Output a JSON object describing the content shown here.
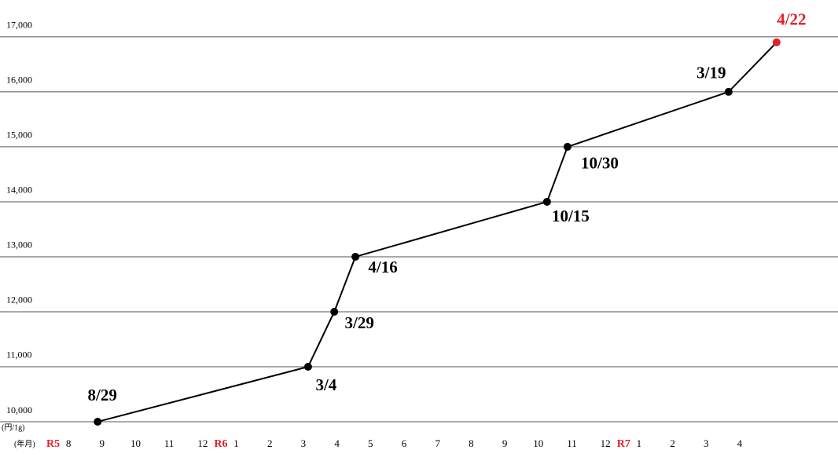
{
  "chart_data": {
    "type": "line",
    "y_unit": "(円/1g)",
    "x_unit": "(年月)",
    "categories": [
      "8",
      "9",
      "10",
      "11",
      "12",
      "1",
      "2",
      "3",
      "4",
      "5",
      "6",
      "7",
      "8",
      "9",
      "10",
      "11",
      "12",
      "1",
      "2",
      "3",
      "4"
    ],
    "years": [
      "R5",
      null,
      null,
      null,
      null,
      "R6",
      null,
      null,
      null,
      null,
      null,
      null,
      null,
      null,
      null,
      null,
      null,
      "R7",
      null,
      null,
      null
    ],
    "xlim": [
      -2.04,
      22.93
    ],
    "ylim": [
      10000,
      17670
    ],
    "yticks": [
      {
        "value": 10000,
        "label": "10,000"
      },
      {
        "value": 11000,
        "label": "11,000"
      },
      {
        "value": 12000,
        "label": "12,000"
      },
      {
        "value": 13000,
        "label": "13,000"
      },
      {
        "value": 14000,
        "label": "14,000"
      },
      {
        "value": 15000,
        "label": "15,000"
      },
      {
        "value": 16000,
        "label": "16,000"
      },
      {
        "value": 17000,
        "label": "17,000"
      }
    ],
    "grid": true,
    "series": [
      {
        "color": "#000000",
        "x": [
          0.87,
          7.14,
          7.92,
          8.55,
          14.26,
          14.87,
          19.67,
          21.1
        ],
        "values": [
          10000,
          11000,
          12000,
          13000,
          14000,
          15000,
          16000,
          16900
        ],
        "point_labels": [
          "8/29",
          "3/4",
          "3/29",
          "4/16",
          "10/15",
          "10/30",
          "3/19",
          "4/22"
        ],
        "point_colors": [
          "#000000",
          "#000000",
          "#000000",
          "#000000",
          "#000000",
          "#000000",
          "#000000",
          "#e0202a"
        ]
      }
    ],
    "year_color": "#e0202a"
  }
}
